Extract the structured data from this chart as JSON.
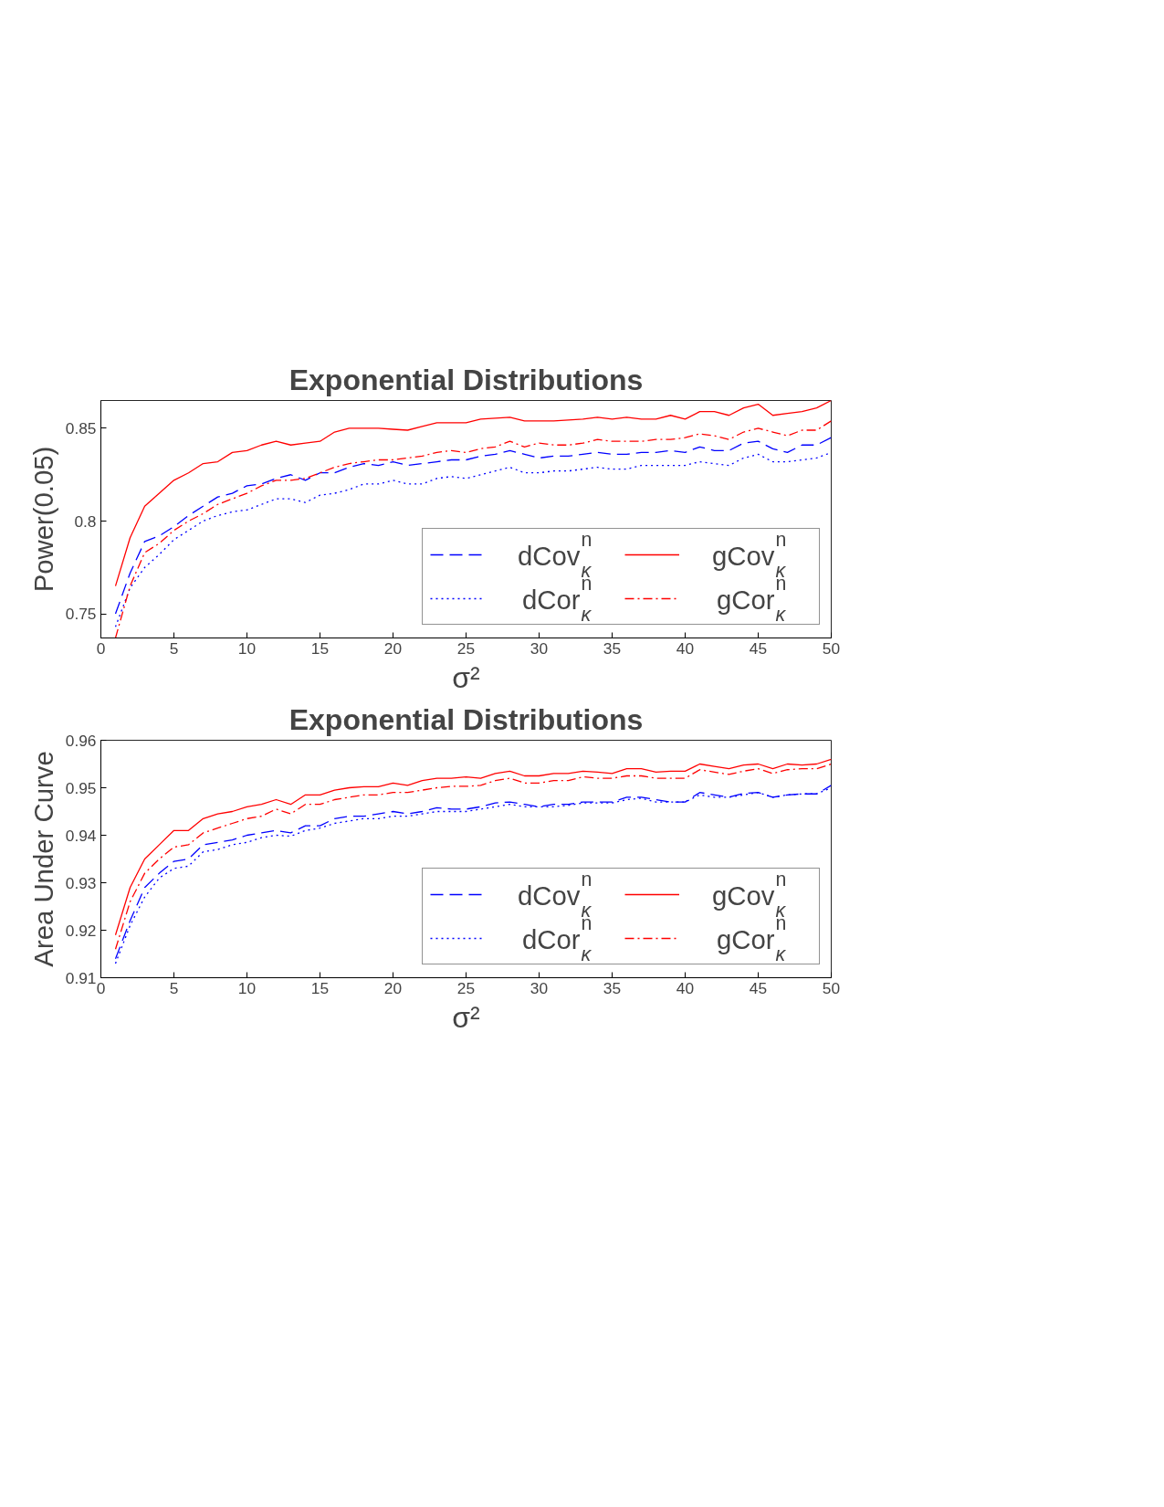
{
  "chart_data": [
    {
      "type": "line",
      "title": "Exponential Distributions",
      "xlabel": "σ²",
      "ylabel": "Power(0.05)",
      "x": [
        1,
        2,
        3,
        4,
        5,
        6,
        7,
        8,
        9,
        10,
        11,
        12,
        13,
        14,
        15,
        16,
        17,
        18,
        19,
        20,
        21,
        22,
        23,
        24,
        25,
        26,
        27,
        28,
        29,
        30,
        31,
        32,
        33,
        34,
        35,
        36,
        37,
        38,
        39,
        40,
        41,
        42,
        43,
        44,
        45,
        46,
        47,
        48,
        49,
        50
      ],
      "xlim": [
        0,
        50
      ],
      "xticks": [
        0,
        5,
        10,
        15,
        20,
        25,
        30,
        35,
        40,
        45,
        50
      ],
      "ylim": [
        0.737,
        0.865
      ],
      "yticks": [
        0.75,
        0.8,
        0.85
      ],
      "grid": false,
      "legend": "bottom right",
      "series": [
        {
          "name": "dCov$^{n}$$_{κ}$",
          "color": "#0000ff",
          "line_style": "dashed",
          "values": [
            0.75,
            0.772,
            0.789,
            0.792,
            0.797,
            0.803,
            0.808,
            0.813,
            0.815,
            0.819,
            0.82,
            0.823,
            0.825,
            0.822,
            0.826,
            0.826,
            0.829,
            0.831,
            0.83,
            0.832,
            0.83,
            0.831,
            0.832,
            0.833,
            0.833,
            0.835,
            0.836,
            0.838,
            0.836,
            0.834,
            0.835,
            0.835,
            0.836,
            0.837,
            0.836,
            0.836,
            0.837,
            0.837,
            0.838,
            0.837,
            0.84,
            0.838,
            0.838,
            0.842,
            0.843,
            0.839,
            0.837,
            0.841,
            0.841,
            0.845
          ]
        },
        {
          "name": "gCov$^{n}$$_{κ}$",
          "color": "#ff0000",
          "line_style": "solid",
          "values": [
            0.765,
            0.791,
            0.808,
            0.815,
            0.822,
            0.826,
            0.831,
            0.832,
            0.837,
            0.838,
            0.841,
            0.843,
            0.841,
            0.842,
            0.843,
            0.848,
            0.85,
            0.85,
            0.85,
            0.8495,
            0.849,
            0.851,
            0.853,
            0.853,
            0.853,
            0.855,
            0.8555,
            0.856,
            0.854,
            0.854,
            0.854,
            0.8545,
            0.855,
            0.856,
            0.855,
            0.856,
            0.855,
            0.855,
            0.857,
            0.855,
            0.859,
            0.859,
            0.857,
            0.861,
            0.863,
            0.857,
            0.858,
            0.859,
            0.861,
            0.865
          ]
        },
        {
          "name": "dCor$^{n}$$_{κ}$",
          "color": "#0000ff",
          "line_style": "dotted",
          "values": [
            0.743,
            0.764,
            0.775,
            0.782,
            0.79,
            0.795,
            0.8,
            0.803,
            0.805,
            0.806,
            0.809,
            0.812,
            0.812,
            0.81,
            0.814,
            0.815,
            0.817,
            0.82,
            0.82,
            0.822,
            0.82,
            0.82,
            0.823,
            0.824,
            0.823,
            0.825,
            0.827,
            0.829,
            0.826,
            0.826,
            0.827,
            0.827,
            0.828,
            0.829,
            0.828,
            0.828,
            0.83,
            0.83,
            0.83,
            0.83,
            0.832,
            0.831,
            0.83,
            0.834,
            0.836,
            0.832,
            0.832,
            0.833,
            0.834,
            0.837
          ]
        },
        {
          "name": "gCor$^{n}$$_{κ}$",
          "color": "#ff0000",
          "line_style": "dashdot",
          "values": [
            0.737,
            0.765,
            0.783,
            0.788,
            0.795,
            0.8,
            0.804,
            0.809,
            0.812,
            0.815,
            0.819,
            0.822,
            0.822,
            0.823,
            0.826,
            0.829,
            0.831,
            0.832,
            0.833,
            0.833,
            0.834,
            0.835,
            0.837,
            0.838,
            0.837,
            0.839,
            0.84,
            0.843,
            0.84,
            0.842,
            0.841,
            0.841,
            0.842,
            0.844,
            0.843,
            0.843,
            0.843,
            0.844,
            0.844,
            0.845,
            0.847,
            0.846,
            0.844,
            0.848,
            0.85,
            0.848,
            0.846,
            0.849,
            0.849,
            0.854
          ]
        }
      ]
    },
    {
      "type": "line",
      "title": "Exponential Distributions",
      "xlabel": "σ²",
      "ylabel": "Area Under Curve",
      "x": [
        1,
        2,
        3,
        4,
        5,
        6,
        7,
        8,
        9,
        10,
        11,
        12,
        13,
        14,
        15,
        16,
        17,
        18,
        19,
        20,
        21,
        22,
        23,
        24,
        25,
        26,
        27,
        28,
        29,
        30,
        31,
        32,
        33,
        34,
        35,
        36,
        37,
        38,
        39,
        40,
        41,
        42,
        43,
        44,
        45,
        46,
        47,
        48,
        49,
        50
      ],
      "xlim": [
        0,
        50
      ],
      "xticks": [
        0,
        5,
        10,
        15,
        20,
        25,
        30,
        35,
        40,
        45,
        50
      ],
      "ylim": [
        0.91,
        0.96
      ],
      "yticks": [
        0.91,
        0.92,
        0.93,
        0.94,
        0.95,
        0.96
      ],
      "grid": false,
      "legend": "bottom right",
      "series": [
        {
          "name": "dCov$^{n}$$_{κ}$",
          "color": "#0000ff",
          "line_style": "dashed",
          "values": [
            0.914,
            0.922,
            0.929,
            0.932,
            0.9345,
            0.935,
            0.938,
            0.9385,
            0.939,
            0.94,
            0.9405,
            0.941,
            0.9405,
            0.942,
            0.942,
            0.9435,
            0.944,
            0.944,
            0.9445,
            0.945,
            0.9445,
            0.945,
            0.9458,
            0.9455,
            0.9455,
            0.946,
            0.9468,
            0.947,
            0.9465,
            0.946,
            0.9465,
            0.9465,
            0.947,
            0.947,
            0.947,
            0.948,
            0.948,
            0.9475,
            0.947,
            0.947,
            0.949,
            0.9485,
            0.948,
            0.9488,
            0.949,
            0.948,
            0.9485,
            0.9487,
            0.9487,
            0.9505
          ]
        },
        {
          "name": "gCov$^{n}$$_{κ}$",
          "color": "#ff0000",
          "line_style": "solid",
          "values": [
            0.919,
            0.929,
            0.935,
            0.938,
            0.941,
            0.941,
            0.9435,
            0.9445,
            0.945,
            0.946,
            0.9465,
            0.9475,
            0.9465,
            0.9485,
            0.9485,
            0.9495,
            0.95,
            0.9502,
            0.9502,
            0.951,
            0.9505,
            0.9515,
            0.952,
            0.952,
            0.9523,
            0.952,
            0.953,
            0.9535,
            0.9525,
            0.9525,
            0.953,
            0.953,
            0.9535,
            0.9533,
            0.953,
            0.954,
            0.954,
            0.9533,
            0.9535,
            0.9535,
            0.955,
            0.9545,
            0.954,
            0.9548,
            0.955,
            0.954,
            0.955,
            0.9548,
            0.955,
            0.956
          ]
        },
        {
          "name": "dCor$^{n}$$_{κ}$",
          "color": "#0000ff",
          "line_style": "dotted",
          "values": [
            0.913,
            0.921,
            0.927,
            0.931,
            0.933,
            0.9335,
            0.9365,
            0.937,
            0.938,
            0.9385,
            0.9395,
            0.94,
            0.9398,
            0.941,
            0.9415,
            0.9425,
            0.943,
            0.9435,
            0.9435,
            0.944,
            0.944,
            0.9445,
            0.945,
            0.945,
            0.945,
            0.9455,
            0.946,
            0.9465,
            0.946,
            0.946,
            0.946,
            0.9463,
            0.9468,
            0.9468,
            0.9468,
            0.9475,
            0.9478,
            0.947,
            0.947,
            0.947,
            0.9485,
            0.948,
            0.948,
            0.9485,
            0.949,
            0.948,
            0.9485,
            0.9487,
            0.9487,
            0.95
          ]
        },
        {
          "name": "gCor$^{n}$$_{κ}$",
          "color": "#ff0000",
          "line_style": "dashdot",
          "values": [
            0.916,
            0.926,
            0.932,
            0.935,
            0.9375,
            0.938,
            0.9405,
            0.9415,
            0.9425,
            0.9435,
            0.944,
            0.9455,
            0.9445,
            0.9465,
            0.9465,
            0.9475,
            0.948,
            0.9485,
            0.9485,
            0.949,
            0.949,
            0.9495,
            0.95,
            0.9503,
            0.9503,
            0.9505,
            0.9515,
            0.952,
            0.951,
            0.951,
            0.9515,
            0.9515,
            0.9523,
            0.952,
            0.952,
            0.9525,
            0.9525,
            0.952,
            0.952,
            0.952,
            0.9538,
            0.9533,
            0.9528,
            0.9535,
            0.954,
            0.953,
            0.9538,
            0.954,
            0.954,
            0.955
          ]
        }
      ]
    }
  ]
}
